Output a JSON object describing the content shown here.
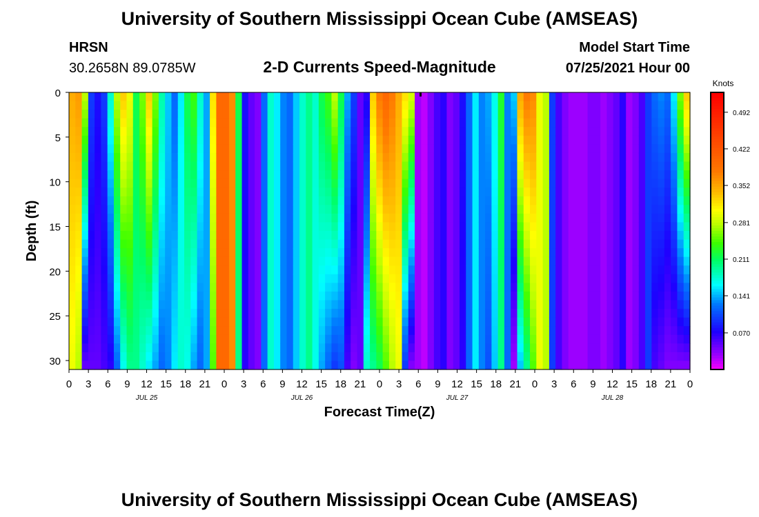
{
  "header": {
    "title": "University of Southern Mississippi Ocean Cube (AMSEAS)",
    "station": "HRSN",
    "location": "30.2658N  89.0785W",
    "plot_title": "2-D Currents Speed-Magnitude",
    "model_start_label": "Model Start Time",
    "model_start_value": "07/25/2021 Hour 00"
  },
  "footer": {
    "title": "University of Southern Mississippi Ocean Cube (AMSEAS)"
  },
  "chart_data": {
    "type": "heatmap",
    "title": "2-D Currents Speed-Magnitude",
    "xlabel": "Forecast Time(Z)",
    "ylabel": "Depth (ft)",
    "x_range_hours": [
      0,
      96
    ],
    "ylim": [
      0,
      31
    ],
    "y_ticks": [
      "0",
      "5",
      "10",
      "15",
      "20",
      "25",
      "30"
    ],
    "x_tick_labels": [
      "0",
      "3",
      "6",
      "9",
      "12",
      "15",
      "18",
      "21",
      "0",
      "3",
      "6",
      "9",
      "12",
      "15",
      "18",
      "21",
      "0",
      "3",
      "6",
      "9",
      "12",
      "15",
      "18",
      "21",
      "0",
      "3",
      "6",
      "9",
      "12",
      "15",
      "18",
      "21",
      "0"
    ],
    "day_labels": [
      "JUL 25",
      "JUL 26",
      "JUL 27",
      "JUL 28"
    ],
    "colorbar": {
      "unit": "Knots",
      "range": [
        0,
        0.53
      ],
      "tick_labels": [
        "0.492",
        "0.422",
        "0.352",
        "0.281",
        "0.211",
        "0.141",
        "0.070"
      ]
    },
    "surface_speed_knots": [
      0.35,
      0.36,
      0.28,
      0.1,
      0.08,
      0.1,
      0.18,
      0.28,
      0.33,
      0.3,
      0.22,
      0.26,
      0.33,
      0.26,
      0.19,
      0.15,
      0.12,
      0.16,
      0.22,
      0.24,
      0.18,
      0.14,
      0.32,
      0.4,
      0.4,
      0.37,
      0.22,
      0.08,
      0.05,
      0.04,
      0.12,
      0.18,
      0.16,
      0.13,
      0.12,
      0.15,
      0.18,
      0.2,
      0.18,
      0.22,
      0.24,
      0.28,
      0.22,
      0.14,
      0.1,
      0.05,
      0.07,
      0.33,
      0.38,
      0.4,
      0.38,
      0.35,
      0.32,
      0.29,
      0.03,
      0.02,
      0.04,
      0.06,
      0.07,
      0.04,
      0.05,
      0.08,
      0.12,
      0.16,
      0.13,
      0.14,
      0.17,
      0.23,
      0.13,
      0.15,
      0.35,
      0.38,
      0.37,
      0.3,
      0.28,
      0.1,
      0.06,
      0.04,
      0.03,
      0.03,
      0.03,
      0.04,
      0.04,
      0.03,
      0.04,
      0.05,
      0.07,
      0.03,
      0.04,
      0.06,
      0.1,
      0.12,
      0.13,
      0.12,
      0.16,
      0.26,
      0.33
    ],
    "bottom_speed_knots": [
      0.3,
      0.28,
      0.05,
      0.05,
      0.05,
      0.06,
      0.07,
      0.12,
      0.17,
      0.2,
      0.2,
      0.18,
      0.16,
      0.14,
      0.12,
      0.13,
      0.16,
      0.18,
      0.17,
      0.14,
      0.12,
      0.14,
      0.25,
      0.4,
      0.4,
      0.37,
      0.2,
      0.07,
      0.05,
      0.04,
      0.12,
      0.18,
      0.16,
      0.13,
      0.12,
      0.15,
      0.18,
      0.2,
      0.17,
      0.14,
      0.12,
      0.1,
      0.11,
      0.06,
      0.04,
      0.05,
      0.18,
      0.2,
      0.22,
      0.25,
      0.28,
      0.3,
      0.1,
      0.04,
      0.03,
      0.02,
      0.04,
      0.06,
      0.07,
      0.04,
      0.05,
      0.07,
      0.12,
      0.16,
      0.13,
      0.11,
      0.15,
      0.2,
      0.12,
      0.03,
      0.15,
      0.2,
      0.25,
      0.3,
      0.28,
      0.1,
      0.06,
      0.04,
      0.03,
      0.03,
      0.03,
      0.04,
      0.04,
      0.03,
      0.04,
      0.05,
      0.07,
      0.03,
      0.04,
      0.06,
      0.1,
      0.06,
      0.05,
      0.04,
      0.04,
      0.04,
      0.04
    ]
  }
}
